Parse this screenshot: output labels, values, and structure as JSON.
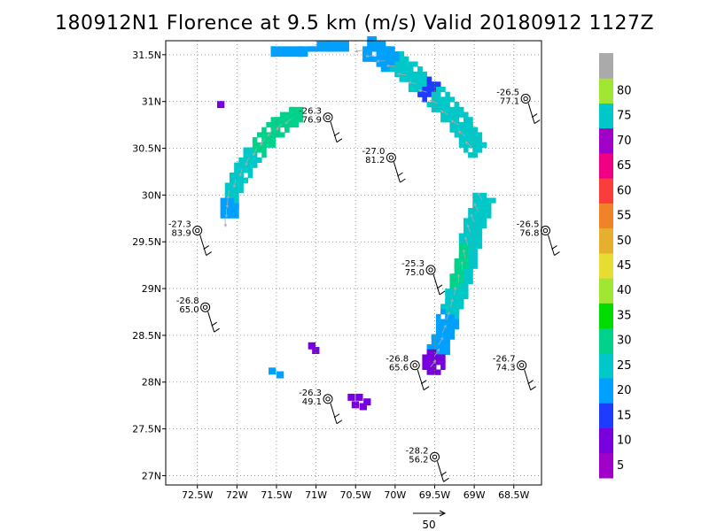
{
  "title": "180912N1 Florence at 9.5 km (m/s) Valid 20180912 1127Z",
  "chart_data": {
    "type": "heatmap",
    "title": "180912N1 Florence at 9.5 km (m/s) Valid 20180912 1127Z",
    "xlim": [
      -72.9,
      -68.15
    ],
    "ylim": [
      26.9,
      31.65
    ],
    "grid": true,
    "x_ticks": [
      {
        "value": -72.5,
        "label": "72.5W"
      },
      {
        "value": -72.0,
        "label": "72W"
      },
      {
        "value": -71.5,
        "label": "71.5W"
      },
      {
        "value": -71.0,
        "label": "71W"
      },
      {
        "value": -70.5,
        "label": "70.5W"
      },
      {
        "value": -70.0,
        "label": "70W"
      },
      {
        "value": -69.5,
        "label": "69.5W"
      },
      {
        "value": -69.0,
        "label": "69W"
      },
      {
        "value": -68.5,
        "label": "68.5W"
      }
    ],
    "y_ticks": [
      {
        "value": 27.0,
        "label": "27N"
      },
      {
        "value": 27.5,
        "label": "27.5N"
      },
      {
        "value": 28.0,
        "label": "28N"
      },
      {
        "value": 28.5,
        "label": "28.5N"
      },
      {
        "value": 29.0,
        "label": "29N"
      },
      {
        "value": 29.5,
        "label": "29.5N"
      },
      {
        "value": 30.0,
        "label": "30N"
      },
      {
        "value": 30.5,
        "label": "30.5N"
      },
      {
        "value": 31.0,
        "label": "31N"
      },
      {
        "value": 31.5,
        "label": "31.5N"
      }
    ],
    "colorbar": {
      "labels": [
        "5",
        "10",
        "15",
        "20",
        "25",
        "30",
        "35",
        "40",
        "45",
        "50",
        "55",
        "60",
        "65",
        "70",
        "75",
        "80"
      ],
      "colors": [
        "#a000c8",
        "#7800dc",
        "#1e3cff",
        "#00a0ff",
        "#00c8c8",
        "#00d28c",
        "#00dc00",
        "#a0e632",
        "#e6dc32",
        "#e6af2d",
        "#f08228",
        "#fa3c3c",
        "#f00082",
        "#a000c8",
        "#00c8c8",
        "#a0e632",
        "#aaaaaa"
      ]
    },
    "dropsondes": [
      {
        "lon": -72.5,
        "lat": 29.62,
        "labels": [
          "-27.3",
          "83.9"
        ]
      },
      {
        "lon": -72.4,
        "lat": 28.8,
        "labels": [
          "-26.8",
          "65.0"
        ]
      },
      {
        "lon": -70.85,
        "lat": 30.83,
        "labels": [
          "-26.3",
          "76.9"
        ]
      },
      {
        "lon": -70.05,
        "lat": 30.4,
        "labels": [
          "-27.0",
          "81.2"
        ]
      },
      {
        "lon": -70.85,
        "lat": 27.82,
        "labels": [
          "-26.3",
          "49.1"
        ]
      },
      {
        "lon": -69.75,
        "lat": 28.18,
        "labels": [
          "-26.8",
          "65.6"
        ]
      },
      {
        "lon": -69.55,
        "lat": 29.2,
        "labels": [
          "-25.3",
          "75.0"
        ]
      },
      {
        "lon": -69.5,
        "lat": 27.2,
        "labels": [
          "-28.2",
          "56.2"
        ]
      },
      {
        "lon": -68.4,
        "lat": 28.18,
        "labels": [
          "-26.7",
          "74.3"
        ]
      },
      {
        "lon": -68.35,
        "lat": 31.03,
        "labels": [
          "-26.5",
          "77.1"
        ]
      },
      {
        "lon": -68.1,
        "lat": 29.62,
        "labels": [
          "-26.5",
          "76.8"
        ]
      }
    ],
    "reference_vector": {
      "label": "50"
    }
  }
}
